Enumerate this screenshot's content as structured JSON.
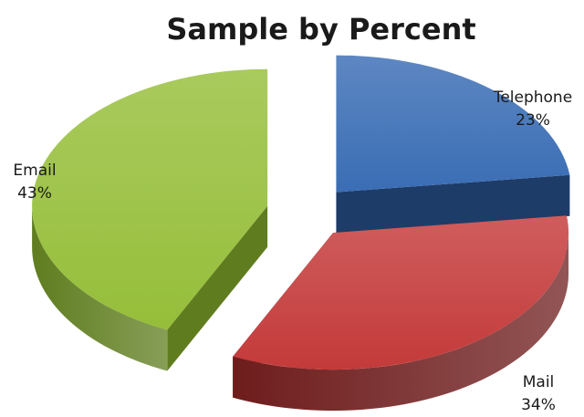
{
  "chart_data": {
    "type": "pie",
    "title": "Sample by Percent",
    "style": "3d-exploded",
    "slices": [
      {
        "name": "Telephone",
        "value": 23,
        "value_label": "23%",
        "color": "#3a6db5",
        "dark": "#1e3c68"
      },
      {
        "name": "Mail",
        "value": 34,
        "value_label": "34%",
        "color": "#c43a3a",
        "dark": "#6e1c1c"
      },
      {
        "name": "Email",
        "value": 43,
        "value_label": "43%",
        "color": "#96be3a",
        "dark": "#5f7d1f"
      }
    ]
  }
}
